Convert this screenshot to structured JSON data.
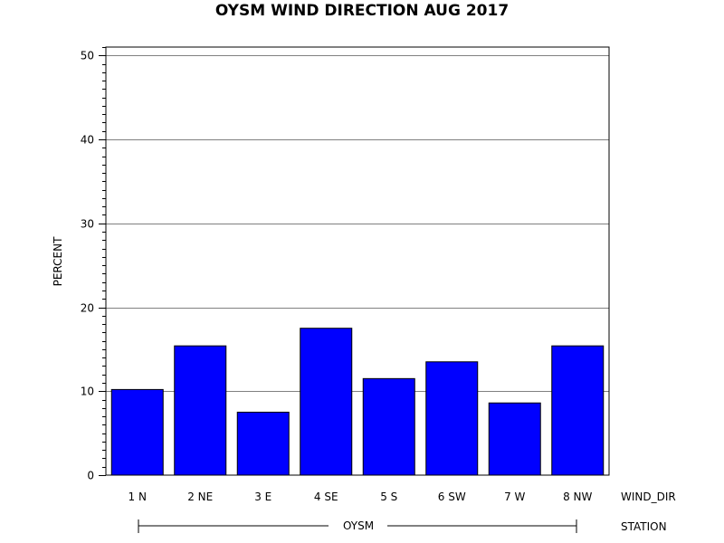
{
  "chart_data": {
    "type": "bar",
    "title": "OYSM WIND DIRECTION AUG 2017",
    "ylabel": "PERCENT",
    "xlabel": "WIND_DIR",
    "group_axis_label": "STATION",
    "group_label": "OYSM",
    "categories": [
      "1 N",
      "2 NE",
      "3 E",
      "4 SE",
      "5 S",
      "6 SW",
      "7 W",
      "8 NW"
    ],
    "values": [
      10.2,
      15.4,
      7.5,
      17.5,
      11.5,
      13.5,
      8.6,
      15.4
    ],
    "ylim": [
      0,
      51
    ],
    "yticks": [
      "0",
      "10",
      "20",
      "30",
      "40",
      "50"
    ],
    "grid": true,
    "legend": "none",
    "bar_color": "#0000ff",
    "grid_color": "#808080"
  }
}
